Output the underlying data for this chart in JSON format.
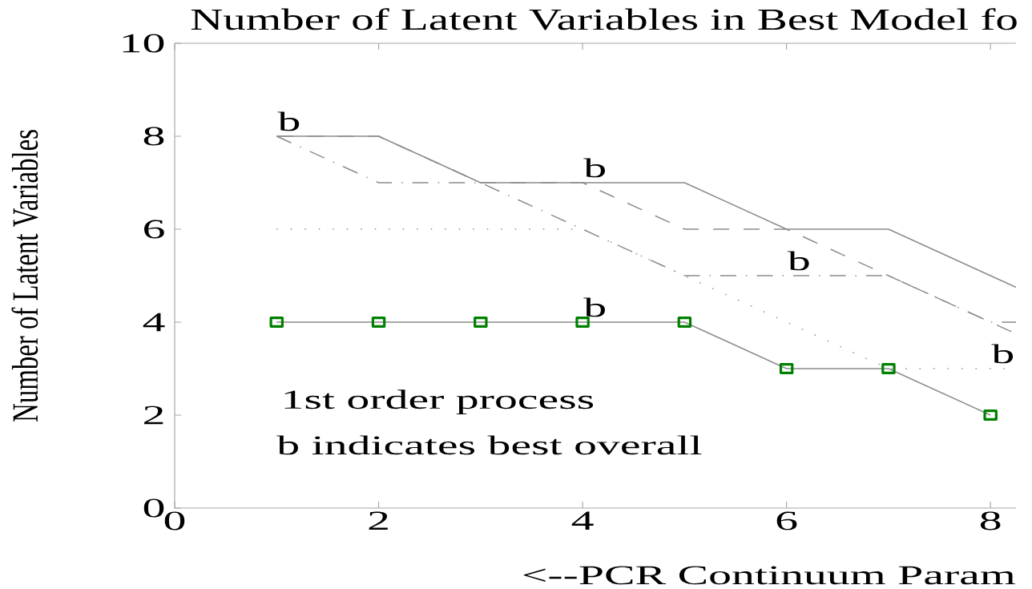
{
  "chart_data": {
    "type": "line",
    "title": "Number of Latent Variables in Best Model fo",
    "xlabel": "<--PCR    Continuum Param",
    "ylabel": "Number of Latent Variables",
    "color": "#8c8c8c",
    "xlim": [
      0,
      8.25
    ],
    "ylim": [
      0,
      10
    ],
    "xticks": [
      0,
      2,
      4,
      6,
      8
    ],
    "yticks": [
      0,
      2,
      4,
      6,
      8,
      10
    ],
    "series": [
      {
        "x": [
          1,
          2,
          3,
          4,
          5,
          6,
          7,
          8,
          8.25
        ],
        "values": [
          8,
          8,
          7,
          7,
          7,
          6,
          6,
          5,
          4.75
        ],
        "line_style": "solid"
      },
      {
        "x": [
          1,
          2,
          3,
          4,
          5,
          6,
          7,
          8,
          8.25
        ],
        "values": [
          8,
          8,
          7,
          7,
          6,
          6,
          5,
          4,
          3.75
        ],
        "line_style": "dashed"
      },
      {
        "x": [
          1,
          2,
          3,
          4,
          5,
          6,
          7,
          8,
          8.25
        ],
        "values": [
          8,
          7,
          7,
          6,
          5,
          5,
          5,
          4,
          4
        ],
        "line_style": "dashdot"
      },
      {
        "x": [
          1,
          2,
          3,
          4,
          5,
          6,
          7,
          8,
          8.25
        ],
        "values": [
          6,
          6,
          6,
          6,
          5,
          4,
          3,
          3,
          3
        ],
        "line_style": "dotted"
      },
      {
        "x": [
          1,
          2,
          3,
          4,
          5,
          6,
          7,
          8
        ],
        "values": [
          4,
          4,
          4,
          4,
          4,
          3,
          3,
          2
        ],
        "line_style": "solid",
        "marker": "square",
        "color": "#008000"
      }
    ],
    "annotations": [
      {
        "text": "b",
        "x": 1,
        "y": 8
      },
      {
        "text": "b",
        "x": 4,
        "y": 7
      },
      {
        "text": "b",
        "x": 6,
        "y": 5
      },
      {
        "text": "b",
        "x": 4,
        "y": 4
      },
      {
        "text": "b",
        "x": 8,
        "y": 3
      },
      "1st order process",
      "b indicates best overall"
    ]
  }
}
